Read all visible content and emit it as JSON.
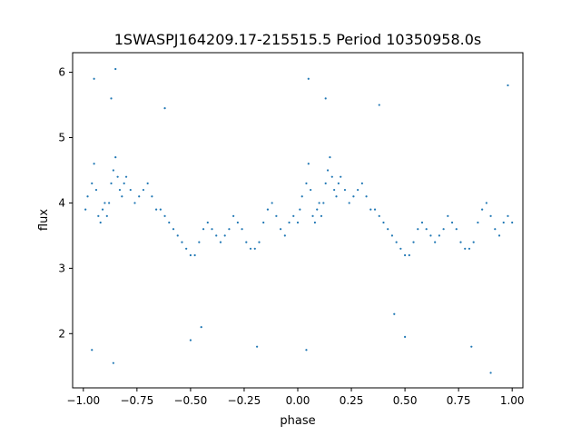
{
  "chart_data": {
    "type": "scatter",
    "title": "1SWASPJ164209.17-215515.5 Period 10350958.0s",
    "xlabel": "phase",
    "ylabel": "flux",
    "xlim": [
      -1.05,
      1.05
    ],
    "ylim": [
      1.17,
      6.3
    ],
    "xticks": [
      -1.0,
      -0.75,
      -0.5,
      -0.25,
      0.0,
      0.25,
      0.5,
      0.75,
      1.0
    ],
    "xtick_labels": [
      "−1.00",
      "−0.75",
      "−0.50",
      "−0.25",
      "0.00",
      "0.25",
      "0.50",
      "0.75",
      "1.00"
    ],
    "yticks": [
      2,
      3,
      4,
      5,
      6
    ],
    "ytick_labels": [
      "2",
      "3",
      "4",
      "5",
      "6"
    ],
    "grid": false,
    "legend": "none",
    "marker_color": "#1f77b4",
    "series": [
      {
        "points": [
          [
            -0.99,
            3.9
          ],
          [
            -0.98,
            4.1
          ],
          [
            -0.96,
            4.3
          ],
          [
            -0.95,
            4.6
          ],
          [
            -0.94,
            4.2
          ],
          [
            -0.93,
            3.8
          ],
          [
            -0.92,
            3.7
          ],
          [
            -0.91,
            3.9
          ],
          [
            -0.9,
            4.0
          ],
          [
            -0.89,
            3.8
          ],
          [
            -0.88,
            4.0
          ],
          [
            -0.87,
            4.3
          ],
          [
            -0.86,
            4.5
          ],
          [
            -0.85,
            4.7
          ],
          [
            -0.84,
            4.4
          ],
          [
            -0.83,
            4.2
          ],
          [
            -0.82,
            4.1
          ],
          [
            -0.81,
            4.3
          ],
          [
            -0.8,
            4.4
          ],
          [
            -0.78,
            4.2
          ],
          [
            -0.76,
            4.0
          ],
          [
            -0.74,
            4.1
          ],
          [
            -0.72,
            4.2
          ],
          [
            -0.7,
            4.3
          ],
          [
            -0.68,
            4.1
          ],
          [
            -0.66,
            3.9
          ],
          [
            -0.64,
            3.9
          ],
          [
            -0.62,
            3.8
          ],
          [
            -0.6,
            3.7
          ],
          [
            -0.58,
            3.6
          ],
          [
            -0.56,
            3.5
          ],
          [
            -0.54,
            3.4
          ],
          [
            -0.52,
            3.3
          ],
          [
            -0.5,
            3.2
          ],
          [
            -0.48,
            3.2
          ],
          [
            -0.46,
            3.4
          ],
          [
            -0.44,
            3.6
          ],
          [
            -0.42,
            3.7
          ],
          [
            -0.4,
            3.6
          ],
          [
            -0.38,
            3.5
          ],
          [
            -0.36,
            3.4
          ],
          [
            -0.34,
            3.5
          ],
          [
            -0.32,
            3.6
          ],
          [
            -0.3,
            3.8
          ],
          [
            -0.28,
            3.7
          ],
          [
            -0.26,
            3.6
          ],
          [
            -0.24,
            3.4
          ],
          [
            -0.22,
            3.3
          ],
          [
            -0.2,
            3.3
          ],
          [
            -0.18,
            3.4
          ],
          [
            -0.16,
            3.7
          ],
          [
            -0.14,
            3.9
          ],
          [
            -0.12,
            4.0
          ],
          [
            -0.1,
            3.8
          ],
          [
            -0.08,
            3.6
          ],
          [
            -0.06,
            3.5
          ],
          [
            -0.04,
            3.7
          ],
          [
            -0.02,
            3.8
          ],
          [
            0.0,
            3.7
          ],
          [
            0.01,
            3.9
          ],
          [
            0.02,
            4.1
          ],
          [
            0.04,
            4.3
          ],
          [
            0.05,
            4.6
          ],
          [
            0.06,
            4.2
          ],
          [
            0.07,
            3.8
          ],
          [
            0.08,
            3.7
          ],
          [
            0.09,
            3.9
          ],
          [
            0.1,
            4.0
          ],
          [
            0.11,
            3.8
          ],
          [
            0.12,
            4.0
          ],
          [
            0.13,
            4.3
          ],
          [
            0.14,
            4.5
          ],
          [
            0.15,
            4.7
          ],
          [
            0.16,
            4.4
          ],
          [
            0.17,
            4.2
          ],
          [
            0.18,
            4.1
          ],
          [
            0.19,
            4.3
          ],
          [
            0.2,
            4.4
          ],
          [
            0.22,
            4.2
          ],
          [
            0.24,
            4.0
          ],
          [
            0.26,
            4.1
          ],
          [
            0.28,
            4.2
          ],
          [
            0.3,
            4.3
          ],
          [
            0.32,
            4.1
          ],
          [
            0.34,
            3.9
          ],
          [
            0.36,
            3.9
          ],
          [
            0.38,
            3.8
          ],
          [
            0.4,
            3.7
          ],
          [
            0.42,
            3.6
          ],
          [
            0.44,
            3.5
          ],
          [
            0.46,
            3.4
          ],
          [
            0.48,
            3.3
          ],
          [
            0.5,
            3.2
          ],
          [
            0.52,
            3.2
          ],
          [
            0.54,
            3.4
          ],
          [
            0.56,
            3.6
          ],
          [
            0.58,
            3.7
          ],
          [
            0.6,
            3.6
          ],
          [
            0.62,
            3.5
          ],
          [
            0.64,
            3.4
          ],
          [
            0.66,
            3.5
          ],
          [
            0.68,
            3.6
          ],
          [
            0.7,
            3.8
          ],
          [
            0.72,
            3.7
          ],
          [
            0.74,
            3.6
          ],
          [
            0.76,
            3.4
          ],
          [
            0.78,
            3.3
          ],
          [
            0.8,
            3.3
          ],
          [
            0.82,
            3.4
          ],
          [
            0.84,
            3.7
          ],
          [
            0.86,
            3.9
          ],
          [
            0.88,
            4.0
          ],
          [
            0.9,
            3.8
          ],
          [
            0.92,
            3.6
          ],
          [
            0.94,
            3.5
          ],
          [
            0.96,
            3.7
          ],
          [
            0.98,
            3.8
          ],
          [
            1.0,
            3.7
          ],
          [
            -0.95,
            5.9
          ],
          [
            -0.87,
            5.6
          ],
          [
            0.05,
            5.9
          ],
          [
            0.13,
            5.6
          ],
          [
            -0.85,
            6.05
          ],
          [
            0.98,
            5.8
          ],
          [
            -0.62,
            5.45
          ],
          [
            0.38,
            5.5
          ],
          [
            -0.96,
            1.75
          ],
          [
            -0.86,
            1.55
          ],
          [
            0.04,
            1.75
          ],
          [
            0.9,
            1.4
          ],
          [
            -0.5,
            1.9
          ],
          [
            0.5,
            1.95
          ],
          [
            -0.19,
            1.8
          ],
          [
            0.81,
            1.8
          ],
          [
            -0.45,
            2.1
          ],
          [
            0.45,
            2.3
          ]
        ]
      }
    ]
  }
}
